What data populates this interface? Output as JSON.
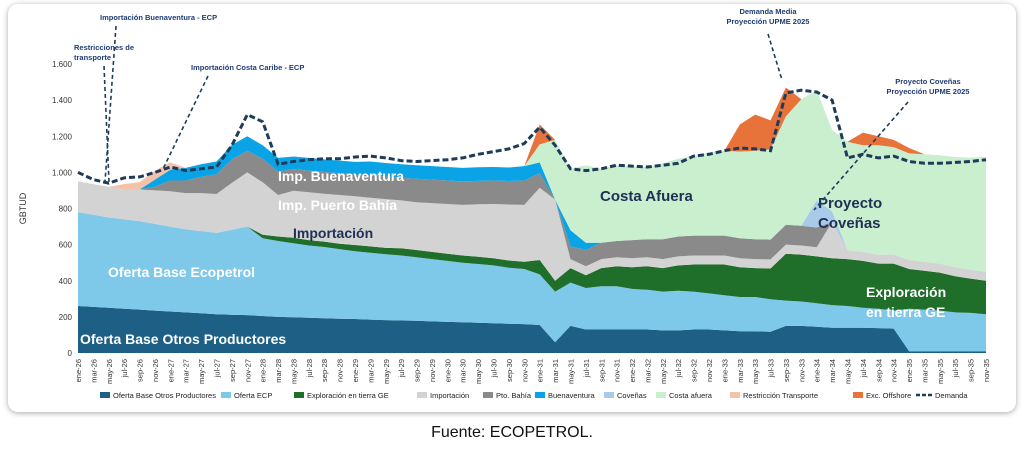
{
  "chart_data": {
    "type": "area",
    "ylabel": "GBTUD",
    "ylim": [
      0,
      1600
    ],
    "yticks": [
      0,
      200,
      400,
      600,
      800,
      1000,
      1200,
      1400,
      1600
    ],
    "ytick_labels": [
      "0",
      "200",
      "400",
      "600",
      "800",
      "1.000",
      "1.200",
      "1.400",
      "1.600"
    ],
    "x_labels": [
      "ene-26",
      "mar-26",
      "may-26",
      "jul-26",
      "sep-26",
      "nov-26",
      "ene-27",
      "mar-27",
      "may-27",
      "jul-27",
      "sep-27",
      "nov-27",
      "ene-28",
      "mar-28",
      "may-28",
      "jul-28",
      "sep-28",
      "nov-28",
      "ene-29",
      "mar-29",
      "may-29",
      "jul-29",
      "sep-29",
      "nov-29",
      "ene-30",
      "mar-30",
      "may-30",
      "jul-30",
      "sep-30",
      "nov-30",
      "ene-31",
      "mar-31",
      "may-31",
      "jul-31",
      "sep-31",
      "nov-31",
      "ene-32",
      "mar-32",
      "may-32",
      "jul-32",
      "sep-32",
      "nov-32",
      "ene-33",
      "mar-33",
      "may-33",
      "jul-33",
      "sep-33",
      "nov-33",
      "ene-34",
      "mar-34",
      "may-34",
      "jul-34",
      "sep-34",
      "nov-34",
      "ene-35",
      "mar-35",
      "may-35",
      "jul-35",
      "sep-35",
      "nov-35"
    ],
    "series": [
      {
        "name": "Oferta Base Otros Productores",
        "color": "#1e5f86",
        "values": [
          260,
          255,
          250,
          245,
          240,
          235,
          230,
          225,
          220,
          215,
          212,
          210,
          205,
          200,
          198,
          195,
          192,
          190,
          188,
          185,
          182,
          180,
          178,
          175,
          172,
          170,
          168,
          165,
          162,
          160,
          155,
          60,
          150,
          130,
          130,
          130,
          130,
          130,
          125,
          125,
          130,
          130,
          125,
          120,
          120,
          118,
          150,
          150,
          145,
          140,
          140,
          140,
          138,
          135,
          10,
          10,
          10,
          10,
          10,
          10
        ]
      },
      {
        "name": "Oferta ECP",
        "color": "#7ec8ea",
        "values": [
          520,
          510,
          500,
          495,
          490,
          480,
          470,
          460,
          455,
          450,
          470,
          490,
          430,
          420,
          410,
          400,
          395,
          385,
          375,
          370,
          365,
          360,
          352,
          345,
          338,
          330,
          325,
          320,
          310,
          305,
          280,
          280,
          240,
          230,
          240,
          240,
          225,
          220,
          215,
          220,
          210,
          200,
          195,
          190,
          190,
          180,
          140,
          135,
          130,
          125,
          120,
          110,
          107,
          100,
          235,
          230,
          225,
          215,
          212,
          205
        ]
      },
      {
        "name": "Exploración en tierra GE",
        "color": "#1f6e2a",
        "values": [
          0,
          0,
          0,
          0,
          0,
          0,
          0,
          0,
          0,
          0,
          0,
          0,
          20,
          25,
          30,
          30,
          30,
          30,
          35,
          35,
          35,
          40,
          40,
          40,
          40,
          40,
          40,
          40,
          40,
          40,
          80,
          60,
          80,
          70,
          100,
          110,
          120,
          130,
          130,
          140,
          150,
          160,
          170,
          165,
          160,
          170,
          260,
          260,
          260,
          260,
          260,
          260,
          250,
          260,
          220,
          215,
          210,
          200,
          190,
          185
        ]
      },
      {
        "name": "Importación",
        "color": "#d3d3d3",
        "values": [
          170,
          170,
          170,
          165,
          175,
          185,
          195,
          200,
          210,
          215,
          260,
          300,
          290,
          230,
          260,
          265,
          265,
          270,
          270,
          270,
          270,
          265,
          265,
          270,
          275,
          280,
          290,
          300,
          310,
          315,
          400,
          450,
          50,
          50,
          50,
          50,
          50,
          50,
          50,
          50,
          50,
          50,
          50,
          50,
          50,
          50,
          50,
          50,
          50,
          200,
          50,
          50,
          50,
          50,
          50,
          50,
          50,
          50,
          50,
          50
        ]
      },
      {
        "name": "Pto. Bahía",
        "color": "#8a8a8a",
        "values": [
          0,
          0,
          0,
          0,
          0,
          20,
          60,
          70,
          90,
          110,
          130,
          120,
          130,
          130,
          120,
          120,
          120,
          120,
          120,
          125,
          125,
          125,
          130,
          130,
          130,
          130,
          130,
          130,
          130,
          135,
          80,
          0,
          70,
          90,
          90,
          90,
          100,
          100,
          110,
          110,
          110,
          110,
          110,
          110,
          110,
          110,
          110,
          110,
          110,
          0,
          0,
          0,
          0,
          0,
          0,
          0,
          0,
          0,
          0,
          0
        ]
      },
      {
        "name": "Buenaventura",
        "color": "#0aa4e6",
        "values": [
          0,
          0,
          0,
          0,
          0,
          40,
          60,
          70,
          70,
          70,
          80,
          80,
          75,
          75,
          70,
          70,
          70,
          70,
          70,
          75,
          75,
          75,
          75,
          75,
          75,
          75,
          75,
          75,
          75,
          80,
          60,
          0,
          90,
          40,
          0,
          0,
          0,
          0,
          0,
          0,
          0,
          0,
          0,
          0,
          0,
          0,
          0,
          0,
          0,
          0,
          0,
          0,
          0,
          0,
          0,
          0,
          0,
          0,
          0,
          0
        ]
      },
      {
        "name": "Coveñas",
        "color": "#a9cbe9",
        "values": [
          0,
          0,
          0,
          0,
          0,
          0,
          0,
          0,
          0,
          0,
          0,
          0,
          0,
          0,
          0,
          0,
          0,
          0,
          0,
          0,
          0,
          0,
          0,
          0,
          0,
          0,
          0,
          0,
          0,
          0,
          0,
          0,
          0,
          0,
          0,
          0,
          0,
          0,
          0,
          0,
          0,
          0,
          0,
          0,
          0,
          0,
          0,
          0,
          150,
          60,
          0,
          0,
          0,
          0,
          0,
          0,
          0,
          0,
          0,
          0
        ]
      },
      {
        "name": "Costa afuera",
        "color": "#c9efcf",
        "values": [
          0,
          0,
          0,
          0,
          0,
          0,
          0,
          0,
          0,
          0,
          0,
          0,
          0,
          0,
          0,
          0,
          0,
          0,
          0,
          0,
          0,
          0,
          0,
          0,
          0,
          0,
          0,
          0,
          0,
          0,
          100,
          330,
          340,
          430,
          410,
          420,
          410,
          400,
          420,
          430,
          440,
          460,
          470,
          480,
          490,
          500,
          600,
          700,
          610,
          450,
          600,
          590,
          605,
          595,
          590,
          595,
          600,
          610,
          620,
          635
        ]
      },
      {
        "name": "Restricción Transporte",
        "color": "#f4c2a8",
        "values": [
          0,
          0,
          0,
          30,
          40,
          50,
          40,
          0,
          0,
          0,
          0,
          0,
          0,
          0,
          0,
          0,
          0,
          0,
          0,
          0,
          0,
          0,
          0,
          0,
          0,
          0,
          0,
          0,
          0,
          0,
          0,
          0,
          0,
          0,
          0,
          0,
          0,
          0,
          0,
          0,
          0,
          0,
          0,
          0,
          0,
          0,
          0,
          0,
          0,
          0,
          0,
          0,
          0,
          0,
          0,
          0,
          0,
          0,
          0,
          0
        ]
      },
      {
        "name": "Exc. Offshore",
        "color": "#e8733a",
        "values": [
          0,
          0,
          0,
          0,
          0,
          0,
          0,
          0,
          0,
          0,
          0,
          0,
          0,
          0,
          0,
          0,
          0,
          0,
          0,
          0,
          0,
          0,
          0,
          0,
          0,
          0,
          0,
          0,
          0,
          0,
          110,
          0,
          0,
          0,
          0,
          0,
          0,
          0,
          0,
          0,
          0,
          0,
          0,
          150,
          200,
          160,
          160,
          0,
          0,
          0,
          0,
          70,
          50,
          40,
          30,
          0,
          0,
          0,
          0,
          0
        ]
      },
      {
        "name": "Demanda",
        "color": "#1f3b5a",
        "values": [
          1000,
          960,
          940,
          970,
          975,
          1000,
          1030,
          1010,
          1020,
          1030,
          1150,
          1320,
          1280,
          1045,
          1060,
          1070,
          1075,
          1075,
          1085,
          1090,
          1080,
          1065,
          1060,
          1065,
          1070,
          1080,
          1100,
          1115,
          1130,
          1160,
          1250,
          1150,
          1020,
          1010,
          1020,
          1040,
          1035,
          1030,
          1040,
          1050,
          1090,
          1100,
          1120,
          1135,
          1130,
          1120,
          1440,
          1455,
          1445,
          1400,
          1080,
          1100,
          1080,
          1090,
          1060,
          1050,
          1050,
          1055,
          1060,
          1070
        ]
      }
    ],
    "legend_position": "bottom",
    "area_labels": [
      "Imp. Buenaventura",
      "Imp. Puerto Bahía",
      "Importación",
      "Oferta Base Ecopetrol",
      "Oferta Base Otros Productores",
      "Costa Afuera",
      "Proyecto",
      "Coveñas",
      "Exploración",
      "en tierra GE"
    ],
    "annotations": [
      {
        "lines": [
          "Importación Buenaventura -  ECP"
        ]
      },
      {
        "lines": [
          "Restricciones  de",
          "transporte"
        ]
      },
      {
        "lines": [
          "Importación Costa Caribe - ECP"
        ]
      },
      {
        "lines": [
          "Demanda Media",
          "Proyección UPME 2025"
        ]
      },
      {
        "lines": [
          "Proyecto Coveñas",
          "Proyección UPME 2025"
        ]
      }
    ]
  },
  "source": "Fuente:  ECOPETROL."
}
